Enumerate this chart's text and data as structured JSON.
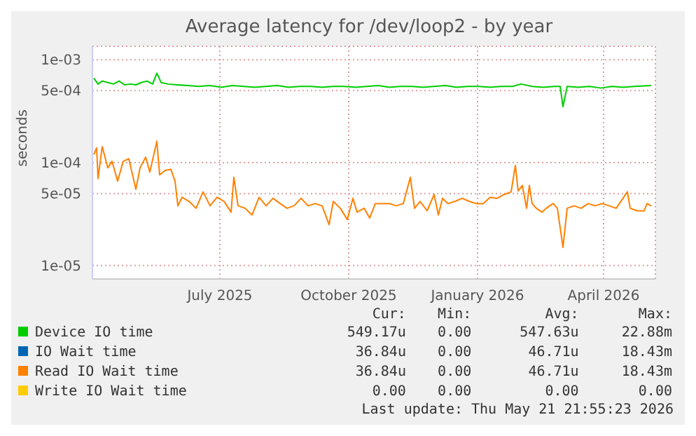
{
  "chart_data": {
    "type": "line",
    "title": "Average latency for /dev/loop2 - by year",
    "ylabel": "seconds",
    "log": "y",
    "grid": true,
    "legend": "bottom",
    "marker": "none",
    "line_style": "solid",
    "xlim": [
      "2025-04-01",
      "2026-05-08"
    ],
    "xticks": [
      {
        "value": "2025-07-01",
        "label": "July 2025"
      },
      {
        "value": "2025-10-01",
        "label": "October 2025"
      },
      {
        "value": "2026-01-01",
        "label": "January 2026"
      },
      {
        "value": "2026-04-01",
        "label": "April 2026"
      }
    ],
    "ylim": [
      7.4e-06,
      0.00135
    ],
    "yticks": [
      {
        "value": 1e-05,
        "label": "1e-05"
      },
      {
        "value": 5e-05,
        "label": "5e-05"
      },
      {
        "value": 0.0001,
        "label": "1e-04"
      },
      {
        "value": 0.0005,
        "label": "5e-04"
      },
      {
        "value": 0.001,
        "label": "1e-03"
      }
    ],
    "series": [
      {
        "name": "Device IO time",
        "color": "#00cc00",
        "x": [
          "2025-04-02",
          "2025-04-05",
          "2025-04-08",
          "2025-04-12",
          "2025-04-16",
          "2025-04-20",
          "2025-04-24",
          "2025-04-28",
          "2025-05-02",
          "2025-05-06",
          "2025-05-10",
          "2025-05-14",
          "2025-05-17",
          "2025-05-20",
          "2025-05-25",
          "2025-05-31",
          "2025-06-08",
          "2025-06-16",
          "2025-06-24",
          "2025-07-02",
          "2025-07-10",
          "2025-07-18",
          "2025-07-26",
          "2025-08-03",
          "2025-08-11",
          "2025-08-19",
          "2025-08-27",
          "2025-09-04",
          "2025-09-12",
          "2025-09-20",
          "2025-09-28",
          "2025-10-06",
          "2025-10-14",
          "2025-10-22",
          "2025-10-30",
          "2025-11-07",
          "2025-11-15",
          "2025-11-23",
          "2025-12-01",
          "2025-12-09",
          "2025-12-17",
          "2025-12-25",
          "2026-01-02",
          "2026-01-10",
          "2026-01-18",
          "2026-01-26",
          "2026-02-01",
          "2026-02-09",
          "2026-02-17",
          "2026-02-25",
          "2026-03-01",
          "2026-03-03",
          "2026-03-06",
          "2026-03-14",
          "2026-03-22",
          "2026-03-30",
          "2026-04-07",
          "2026-04-15",
          "2026-04-23",
          "2026-05-05"
        ],
        "values": [
          0.00066,
          0.00058,
          0.00062,
          0.0006,
          0.00058,
          0.00062,
          0.00057,
          0.00058,
          0.00057,
          0.0006,
          0.00062,
          0.00058,
          0.00074,
          0.0006,
          0.00058,
          0.00057,
          0.00056,
          0.00055,
          0.00056,
          0.00054,
          0.00056,
          0.00055,
          0.00054,
          0.00055,
          0.00056,
          0.00054,
          0.00055,
          0.00055,
          0.00054,
          0.00055,
          0.00055,
          0.00054,
          0.00055,
          0.00056,
          0.00054,
          0.00055,
          0.00055,
          0.00054,
          0.00055,
          0.00056,
          0.00054,
          0.00055,
          0.00055,
          0.00054,
          0.00055,
          0.00055,
          0.00058,
          0.00055,
          0.00054,
          0.00055,
          0.00055,
          0.00035,
          0.00055,
          0.00054,
          0.00055,
          0.00053,
          0.00055,
          0.00054,
          0.00055,
          0.00056
        ]
      },
      {
        "name": "IO Wait time",
        "color": "#0066b3"
      },
      {
        "name": "Read IO Wait time",
        "color": "#ff8000",
        "x": [
          "2025-04-02",
          "2025-04-04",
          "2025-04-05",
          "2025-04-08",
          "2025-04-12",
          "2025-04-15",
          "2025-04-19",
          "2025-04-23",
          "2025-04-27",
          "2025-05-02",
          "2025-05-05",
          "2025-05-09",
          "2025-05-12",
          "2025-05-17",
          "2025-05-19",
          "2025-05-23",
          "2025-05-27",
          "2025-05-30",
          "2025-06-01",
          "2025-06-04",
          "2025-06-09",
          "2025-06-14",
          "2025-06-19",
          "2025-06-24",
          "2025-06-29",
          "2025-07-04",
          "2025-07-09",
          "2025-07-11",
          "2025-07-14",
          "2025-07-19",
          "2025-07-24",
          "2025-07-29",
          "2025-08-03",
          "2025-08-08",
          "2025-08-13",
          "2025-08-18",
          "2025-08-23",
          "2025-08-28",
          "2025-09-02",
          "2025-09-07",
          "2025-09-12",
          "2025-09-17",
          "2025-09-20",
          "2025-09-25",
          "2025-09-30",
          "2025-10-04",
          "2025-10-07",
          "2025-10-12",
          "2025-10-16",
          "2025-10-20",
          "2025-10-25",
          "2025-10-30",
          "2025-11-04",
          "2025-11-09",
          "2025-11-14",
          "2025-11-17",
          "2025-11-21",
          "2025-11-26",
          "2025-12-01",
          "2025-12-04",
          "2025-12-07",
          "2025-12-11",
          "2025-12-16",
          "2025-12-21",
          "2025-12-26",
          "2025-12-31",
          "2026-01-05",
          "2026-01-10",
          "2026-01-15",
          "2026-01-20",
          "2026-01-25",
          "2026-01-28",
          "2026-01-30",
          "2026-02-02",
          "2026-02-05",
          "2026-02-07",
          "2026-02-09",
          "2026-02-12",
          "2026-02-16",
          "2026-02-19",
          "2026-02-24",
          "2026-02-27",
          "2026-03-03",
          "2026-03-06",
          "2026-03-11",
          "2026-03-16",
          "2026-03-21",
          "2026-03-26",
          "2026-03-31",
          "2026-04-05",
          "2026-04-10",
          "2026-04-18",
          "2026-04-20",
          "2026-04-25",
          "2026-04-30",
          "2026-05-02",
          "2026-05-05"
        ],
        "values": [
          0.00012,
          0.000139,
          7e-05,
          0.000143,
          8.9e-05,
          0.000103,
          6.6e-05,
          0.000103,
          0.000109,
          5.5e-05,
          8.9e-05,
          0.000113,
          8.1e-05,
          0.000161,
          7.6e-05,
          8.4e-05,
          8.6e-05,
          6.6e-05,
          3.8e-05,
          4.6e-05,
          4.2e-05,
          3.6e-05,
          5.2e-05,
          3.8e-05,
          4.6e-05,
          4.2e-05,
          3.3e-05,
          7.2e-05,
          3.8e-05,
          3.6e-05,
          3.1e-05,
          4.6e-05,
          3.8e-05,
          4.5e-05,
          4e-05,
          3.6e-05,
          3.8e-05,
          4.5e-05,
          3.8e-05,
          4e-05,
          3.8e-05,
          2.5e-05,
          4.2e-05,
          3.6e-05,
          2.8e-05,
          4.5e-05,
          3.3e-05,
          3.6e-05,
          2.9e-05,
          4e-05,
          4e-05,
          4e-05,
          3.8e-05,
          4e-05,
          7.2e-05,
          3.6e-05,
          4.2e-05,
          3.4e-05,
          4.9e-05,
          3.1e-05,
          4.5e-05,
          4e-05,
          4.2e-05,
          4.5e-05,
          4.2e-05,
          4e-05,
          4e-05,
          4.6e-05,
          4.5e-05,
          4.9e-05,
          5.2e-05,
          9.4e-05,
          5.3e-05,
          6e-05,
          3.6e-05,
          6e-05,
          4e-05,
          3.6e-05,
          3.3e-05,
          3.6e-05,
          4e-05,
          3.6e-05,
          1.5e-05,
          3.6e-05,
          3.8e-05,
          3.6e-05,
          4e-05,
          3.8e-05,
          4e-05,
          3.8e-05,
          3.6e-05,
          5.2e-05,
          3.6e-05,
          3.4e-05,
          3.4e-05,
          4e-05,
          3.8e-05
        ]
      },
      {
        "name": "Write IO Wait time",
        "color": "#ffcc00"
      }
    ],
    "annotations": [
      "Cur:",
      "Min:",
      "Avg:",
      "Max:",
      "549.17u",
      "0.00",
      "547.63u",
      "22.88m",
      "36.84u",
      "0.00",
      "46.71u",
      "18.43m",
      "36.84u",
      "0.00",
      "46.71u",
      "18.43m",
      "0.00",
      "0.00",
      "0.00",
      "0.00",
      "Last update: Thu May 21 21:55:23 2026"
    ]
  }
}
